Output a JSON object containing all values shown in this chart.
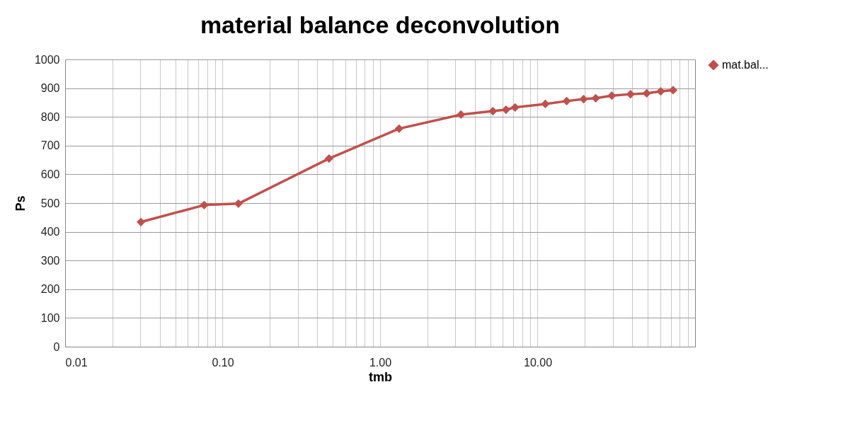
{
  "chart_data": {
    "type": "line",
    "title": "material balance deconvolution",
    "xlabel": "tmb",
    "ylabel": "Ps",
    "x": [
      0.0303,
      0.0764,
      0.126,
      0.474,
      1.32,
      3.26,
      5.2,
      6.3,
      7.2,
      11.2,
      15.3,
      19.6,
      23.4,
      29.6,
      38.9,
      49.3,
      60.5,
      72.5
    ],
    "series": [
      {
        "name": "mat.bal...",
        "color": "#c0504d",
        "values": [
          434,
          493,
          498,
          655,
          759,
          808,
          820,
          825,
          833,
          845,
          855,
          862,
          865,
          874,
          879,
          882,
          889,
          893
        ]
      }
    ],
    "log": "x",
    "xlim": [
      0.01,
      100
    ],
    "ylim": [
      0,
      1000
    ],
    "xticks": [
      {
        "value": 0.01,
        "label": "0.01"
      },
      {
        "value": 0.02,
        "label": null
      },
      {
        "value": 0.03,
        "label": null
      },
      {
        "value": 0.04,
        "label": null
      },
      {
        "value": 0.05,
        "label": null
      },
      {
        "value": 0.06,
        "label": null
      },
      {
        "value": 0.07,
        "label": null
      },
      {
        "value": 0.08,
        "label": null
      },
      {
        "value": 0.09,
        "label": null
      },
      {
        "value": 0.1,
        "label": "0.10"
      },
      {
        "value": 0.2,
        "label": null
      },
      {
        "value": 0.3,
        "label": null
      },
      {
        "value": 0.4,
        "label": null
      },
      {
        "value": 0.5,
        "label": null
      },
      {
        "value": 0.6,
        "label": null
      },
      {
        "value": 0.7,
        "label": null
      },
      {
        "value": 0.8,
        "label": null
      },
      {
        "value": 0.9,
        "label": null
      },
      {
        "value": 1,
        "label": "1.00"
      },
      {
        "value": 2,
        "label": null
      },
      {
        "value": 3,
        "label": null
      },
      {
        "value": 4,
        "label": null
      },
      {
        "value": 5,
        "label": null
      },
      {
        "value": 6,
        "label": null
      },
      {
        "value": 7,
        "label": null
      },
      {
        "value": 8,
        "label": null
      },
      {
        "value": 9,
        "label": null
      },
      {
        "value": 10,
        "label": "10.00"
      },
      {
        "value": 20,
        "label": null
      },
      {
        "value": 30,
        "label": null
      },
      {
        "value": 40,
        "label": null
      },
      {
        "value": 50,
        "label": null
      },
      {
        "value": 60,
        "label": null
      },
      {
        "value": 70,
        "label": null
      },
      {
        "value": 80,
        "label": null
      },
      {
        "value": 90,
        "label": null
      }
    ],
    "yticks": [
      0,
      100,
      200,
      300,
      400,
      500,
      600,
      700,
      800,
      900,
      1000
    ],
    "grid": true,
    "legend": "right",
    "marker": "diamond",
    "line_style": "solid"
  }
}
